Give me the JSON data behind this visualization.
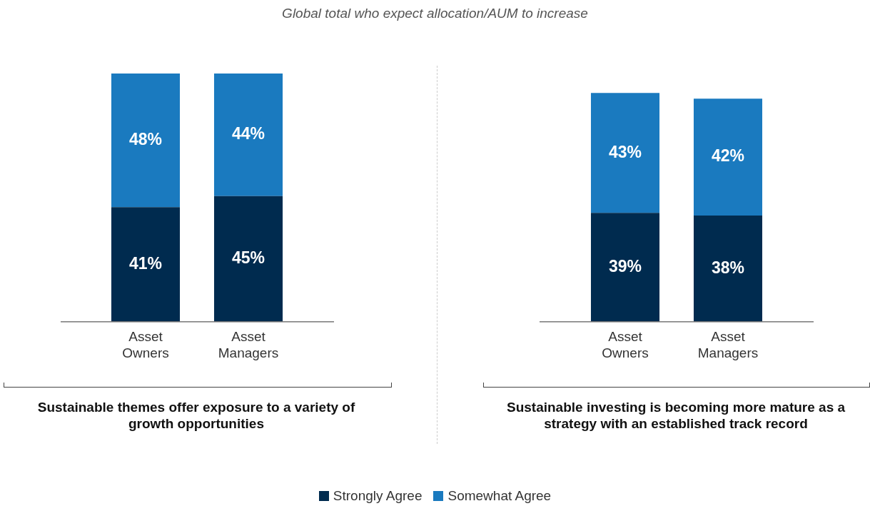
{
  "chart_data": [
    {
      "type": "bar",
      "title": "Global total who expect allocation/AUM to increase",
      "xlabel": "Sustainable themes offer exposure to a variety of growth opportunities",
      "categories": [
        "Asset Owners",
        "Asset Managers"
      ],
      "stacked": true,
      "legend": "bottom",
      "series": [
        {
          "name": "Strongly Agree",
          "color": "#002b4f",
          "values": [
            41,
            45
          ],
          "value_labels": [
            "41%",
            "45%"
          ]
        },
        {
          "name": "Somewhat Agree",
          "color": "#1a7abf",
          "values": [
            48,
            44
          ],
          "value_labels": [
            "48%",
            "44%"
          ]
        }
      ]
    },
    {
      "type": "bar",
      "xlabel": "Sustainable investing is becoming more mature as a strategy with an established track record",
      "categories": [
        "Asset Owners",
        "Asset Managers"
      ],
      "stacked": true,
      "series": [
        {
          "color": "#002b4f",
          "values": [
            39,
            38
          ],
          "value_labels": [
            "39%",
            "38%"
          ]
        },
        {
          "color": "#1a7abf",
          "values": [
            43,
            42
          ],
          "value_labels": [
            "43%",
            "42%"
          ]
        }
      ]
    }
  ]
}
